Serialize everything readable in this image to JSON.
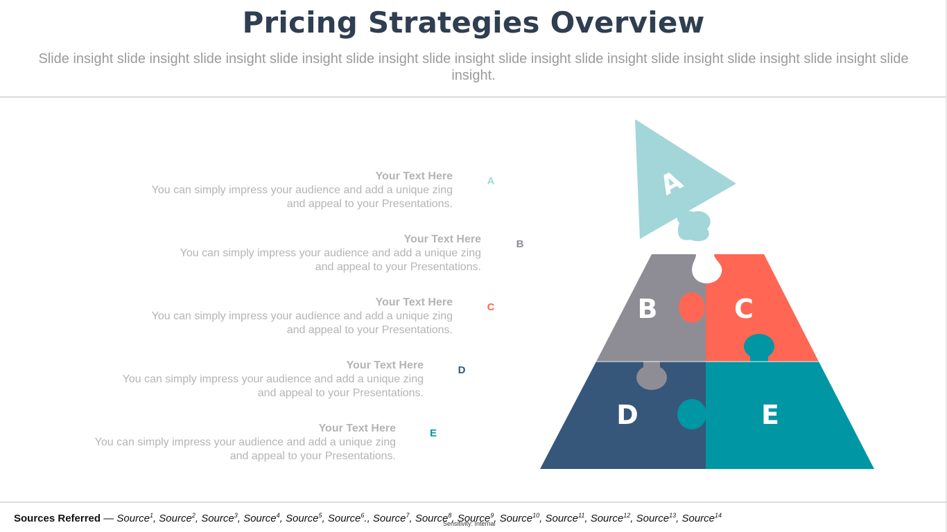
{
  "slide": {
    "title": "Pricing Strategies Overview",
    "subtitle": "Slide insight slide insight slide insight slide insight slide insight slide insight slide insight slide insight slide insight slide insight slide insight slide insight."
  },
  "items": [
    {
      "heading": "Your Text  Here",
      "body": "You can simply impress your audience and add a unique zing and appeal to your Presentations.",
      "letter": "A",
      "color": "#a2d6d8"
    },
    {
      "heading": "Your Text  Here",
      "body": "You can simply impress your audience and add a unique zing and appeal to your Presentations.",
      "letter": "B",
      "color": "#8e8d96"
    },
    {
      "heading": "Your Text  Here",
      "body": "You can simply impress your audience and add a unique zing and appeal to your Presentations.",
      "letter": "C",
      "color": "#ff6654"
    },
    {
      "heading": "Your Text  Here",
      "body": "You can simply impress your audience and add a unique zing and appeal to your Presentations.",
      "letter": "D",
      "color": "#36577a"
    },
    {
      "heading": "Your Text  Here",
      "body": "You can simply impress your audience and add a unique zing and appeal to your Presentations.",
      "letter": "E",
      "color": "#0096a3"
    }
  ],
  "puzzle": {
    "labels": {
      "a": "A",
      "b": "B",
      "c": "C",
      "d": "D",
      "e": "E"
    }
  },
  "footer": {
    "sources_lead": "Sources Referred",
    "dash": " — ",
    "sources": [
      {
        "name": "Source",
        "sup": "1",
        "sep": ", "
      },
      {
        "name": "Source",
        "sup": "2",
        "sep": ", "
      },
      {
        "name": "Source",
        "sup": "3",
        "sep": ", "
      },
      {
        "name": "Source",
        "sup": "4",
        "sep": ", "
      },
      {
        "name": "Source",
        "sup": "5",
        "sep": ", "
      },
      {
        "name": "Source",
        "sup": "6",
        "sep": "., "
      },
      {
        "name": "Source",
        "sup": "7",
        "sep": ", "
      },
      {
        "name": "Source",
        "sup": "8",
        "sep": ", "
      },
      {
        "name": "Source",
        "sup": "9",
        "sep": ", "
      },
      {
        "name": "Source",
        "sup": "10",
        "sep": ", "
      },
      {
        "name": "Source",
        "sup": "11",
        "sep": ", "
      },
      {
        "name": "Source",
        "sup": "12",
        "sep": ", "
      },
      {
        "name": "Source",
        "sup": "13",
        "sep": ", "
      },
      {
        "name": "Source",
        "sup": "14",
        "sep": ""
      }
    ],
    "sensitivity": "Sensitivity: Internal"
  }
}
